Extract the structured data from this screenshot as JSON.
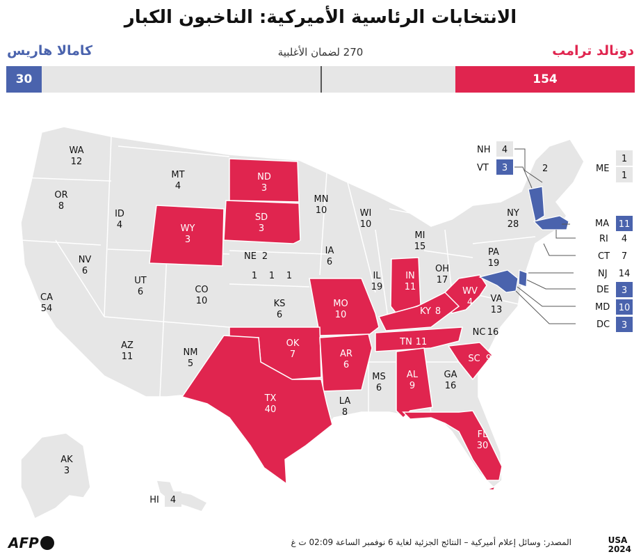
{
  "title": "الانتخابات الرئاسية الأميركية: الناخبون الكبار",
  "candidates": {
    "harris": {
      "name": "كامالا هاريس",
      "votes": "30",
      "color": "#4a63ad"
    },
    "trump": {
      "name": "دونالد ترامب",
      "votes": "154",
      "color": "#e0254f"
    }
  },
  "majority_label": "270 لضمان الأغلبية",
  "states": {
    "WA": "12",
    "OR": "8",
    "CA": "54",
    "ID": "4",
    "NV": "6",
    "MT": "4",
    "WY": "3",
    "UT": "6",
    "AZ": "11",
    "CO": "10",
    "NM": "5",
    "ND": "3",
    "SD": "3",
    "NE": "2",
    "KS": "6",
    "OK": "7",
    "TX": "40",
    "MN": "10",
    "IA": "6",
    "MO": "10",
    "AR": "6",
    "LA": "8",
    "WI": "10",
    "IL": "19",
    "MS": "6",
    "MI": "15",
    "IN": "11",
    "OH": "17",
    "KY": "8",
    "TN": "11",
    "AL": "9",
    "GA": "16",
    "FL": "30",
    "SC": "9",
    "NC": "16",
    "VA": "13",
    "WV": "4",
    "PA": "19",
    "NY": "28",
    "AK": "3",
    "HI": "4",
    "NE_districts": [
      "1",
      "1",
      "1"
    ],
    "NH": "4",
    "VT": "3",
    "ME": "2",
    "ME_districts": [
      "1",
      "1"
    ],
    "MA": "11",
    "RI": "4",
    "CT": "7",
    "NJ": "14",
    "DE": "3",
    "MD": "10",
    "DC": "3"
  },
  "source": "المصدر: وسائل إعلام أميركية – النتائج الجزئية لغاية 6 نوفمبر الساعة 02:09 ت غ",
  "logo_afp": "AFP",
  "logo_usa": [
    "USA",
    "2024"
  ]
}
